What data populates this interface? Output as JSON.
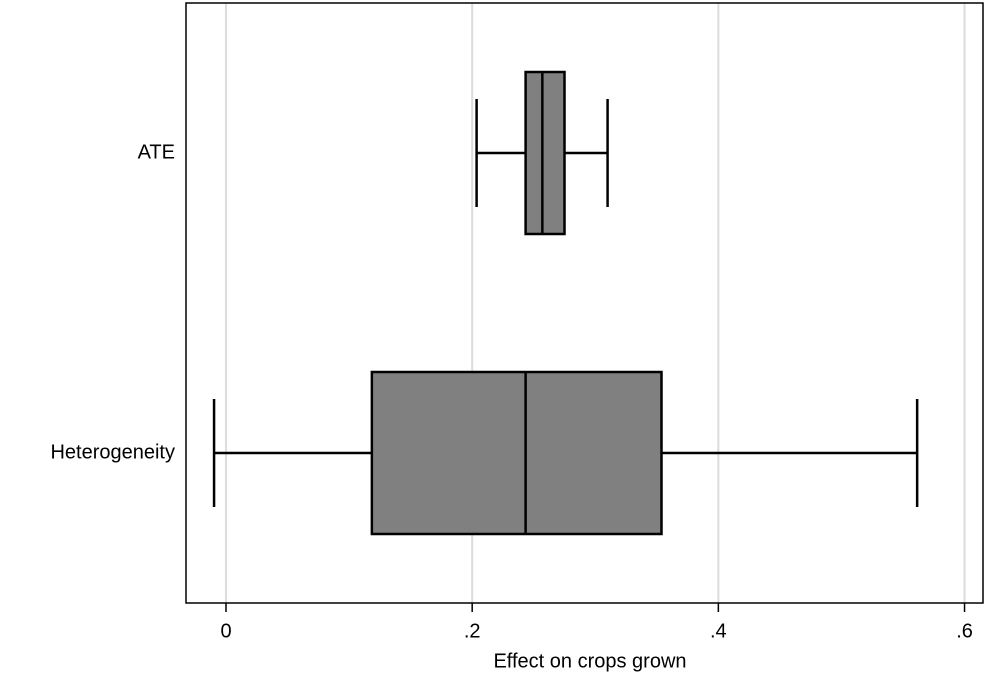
{
  "chart_data": {
    "type": "boxplot",
    "x_label": "Effect on crops grown",
    "boxes": [
      {
        "name": "ATE",
        "whisker_low": 0.2036,
        "q1": 0.2434,
        "median": 0.257,
        "q3": 0.275,
        "whisker_high": 0.31
      },
      {
        "name": "Heterogeneity",
        "whisker_low": -0.0097,
        "q1": 0.1185,
        "median": 0.2434,
        "q3": 0.3538,
        "whisker_high": 0.5615
      }
    ],
    "color": "#808080",
    "xlim": [
      -0.0325,
      0.615
    ],
    "xticks": [
      0,
      {
        "value": 0.2,
        "label": ".2"
      },
      {
        "value": 0.4,
        "label": ".4"
      },
      {
        "value": 0.6,
        "label": ".6"
      }
    ],
    "grid": true
  }
}
